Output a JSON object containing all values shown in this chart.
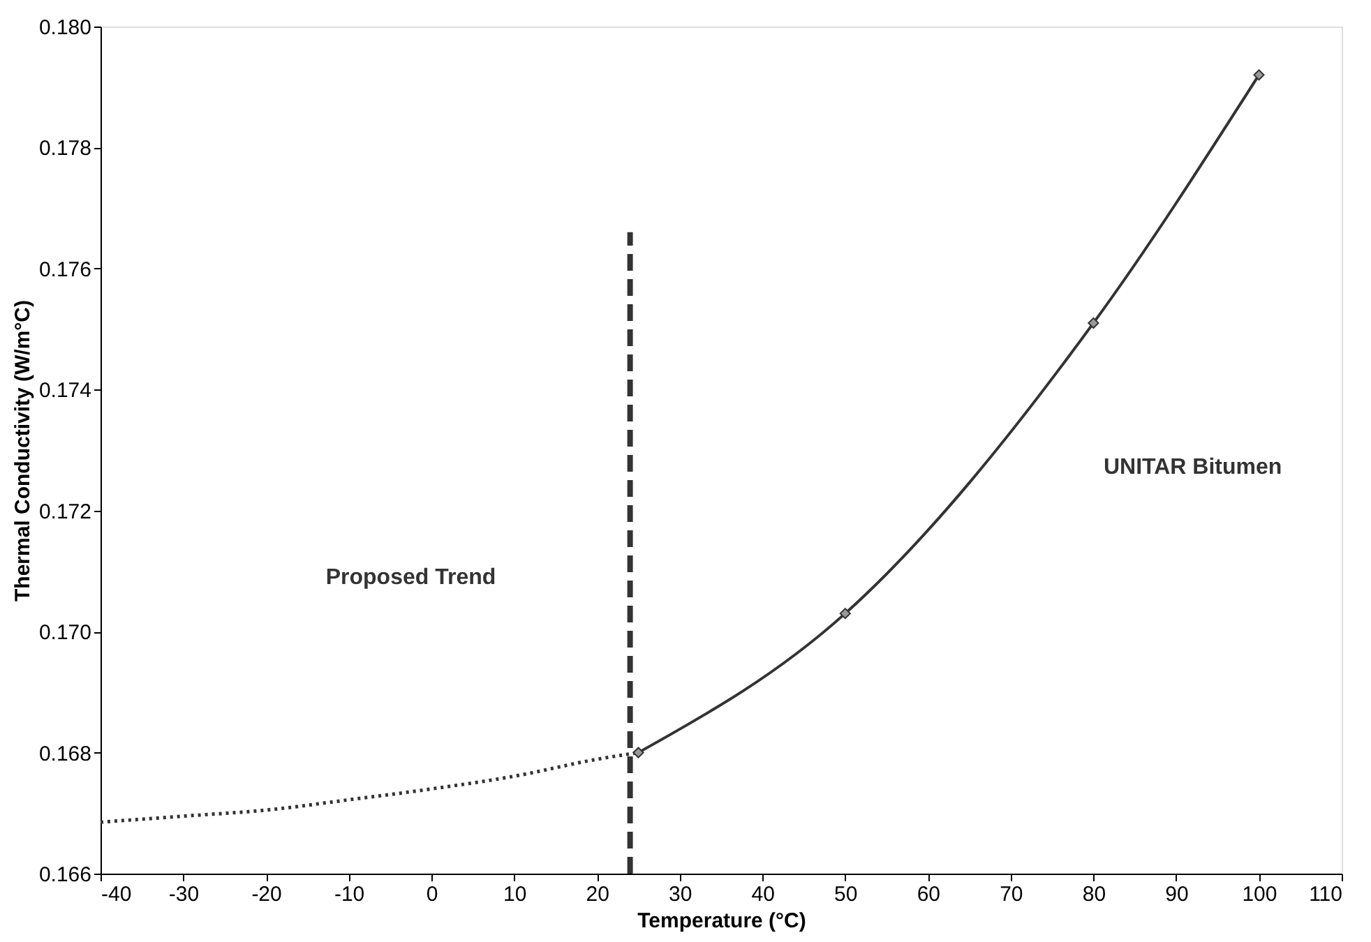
{
  "chart_data": {
    "type": "line",
    "xlabel": "Temperature (°C)",
    "ylabel": "Thermal Conductivity (W/m°C)",
    "xlim": [
      -40,
      110
    ],
    "xticks": [
      -40,
      -30,
      -20,
      -10,
      0,
      10,
      20,
      30,
      40,
      50,
      60,
      70,
      80,
      90,
      100,
      110
    ],
    "ylim": [
      0.166,
      0.18
    ],
    "yticks": [
      0.166,
      0.168,
      {
        "value": 0.17,
        "label": "0.170"
      },
      0.172,
      0.174,
      0.176,
      0.178,
      {
        "value": 0.18,
        "label": "0.180"
      }
    ],
    "grid": false,
    "series": [
      {
        "color": "#333333",
        "line_style": "dotted",
        "marker": "none",
        "x": [
          -40,
          -30,
          -20,
          -10,
          0,
          10,
          20,
          25
        ],
        "values": [
          0.16685,
          0.16695,
          0.16705,
          0.16722,
          0.1674,
          0.16761,
          0.16789,
          0.168
        ]
      },
      {
        "color": "#333333",
        "line_style": "solid",
        "marker": "diamond",
        "x": [
          25,
          50,
          80,
          100
        ],
        "values": [
          0.168,
          0.1703,
          0.1751,
          0.1792
        ]
      },
      {
        "color": "#333333",
        "line_style": "dashed",
        "marker": "none",
        "x": [
          24,
          24
        ],
        "values": [
          0.166,
          0.1766
        ]
      }
    ],
    "annotations": [
      "Proposed Trend",
      "UNITAR Bitumen"
    ]
  }
}
